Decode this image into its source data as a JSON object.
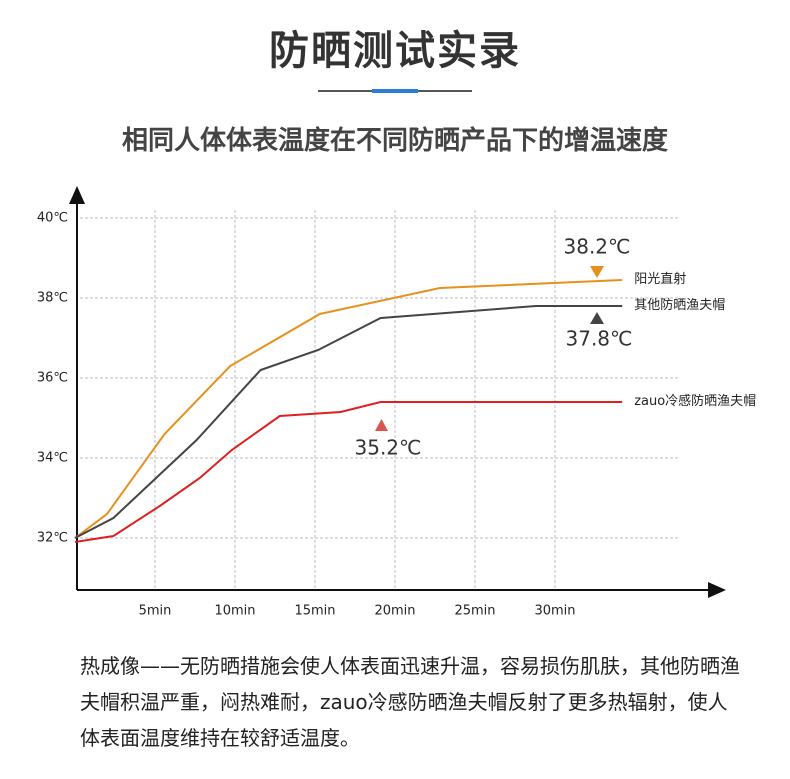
{
  "header": {
    "title": "防晒测试实录",
    "subtitle": "相同人体体表温度在不同防晒产品下的增温速度"
  },
  "chart_data": {
    "type": "line",
    "xlim": [
      0,
      40
    ],
    "ylim": [
      30.7,
      40.8
    ],
    "xticks": [
      {
        "value": 5,
        "label": "5min"
      },
      {
        "value": 10,
        "label": "10min"
      },
      {
        "value": 15,
        "label": "15min"
      },
      {
        "value": 20,
        "label": "20min"
      },
      {
        "value": 25,
        "label": "25min"
      },
      {
        "value": 30,
        "label": "30min"
      }
    ],
    "yticks": [
      {
        "value": 32,
        "label": "32℃"
      },
      {
        "value": 34,
        "label": "34℃"
      },
      {
        "value": 36,
        "label": "36℃"
      },
      {
        "value": 38,
        "label": "38℃"
      },
      {
        "value": 40,
        "label": "40℃"
      }
    ],
    "grid": true,
    "series": [
      {
        "name": "阳光直射",
        "color": "#e8901c",
        "x": [
          0,
          2,
          5.6,
          9.7,
          15.3,
          22.8,
          34.2
        ],
        "values": [
          32.0,
          32.6,
          34.6,
          36.3,
          37.6,
          38.25,
          38.45
        ]
      },
      {
        "name": "其他防晒渔夫帽",
        "color": "#444444",
        "x": [
          0,
          2.4,
          7.6,
          11.6,
          15.2,
          19.1,
          28.8,
          34.2
        ],
        "values": [
          32.0,
          32.5,
          34.45,
          36.2,
          36.7,
          37.5,
          37.8,
          37.8
        ]
      },
      {
        "name": "zauo冷感防晒渔夫帽",
        "color": "#e02020",
        "x": [
          0,
          2.4,
          5.3,
          7.8,
          9.8,
          12.8,
          16.6,
          19.1,
          34.2
        ],
        "values": [
          31.9,
          32.05,
          32.8,
          33.5,
          34.2,
          35.05,
          35.15,
          35.4,
          35.4
        ]
      }
    ],
    "annotations": [
      "38.2℃",
      "37.8℃",
      "35.2℃"
    ]
  },
  "description": "热成像——无防晒措施会使人体表面迅速升温，容易损伤肌肤，其他防晒渔夫帽积温严重，闷热难耐，zauo冷感防晒渔夫帽反射了更多热辐射，使人体表面温度维持在较舒适温度。"
}
